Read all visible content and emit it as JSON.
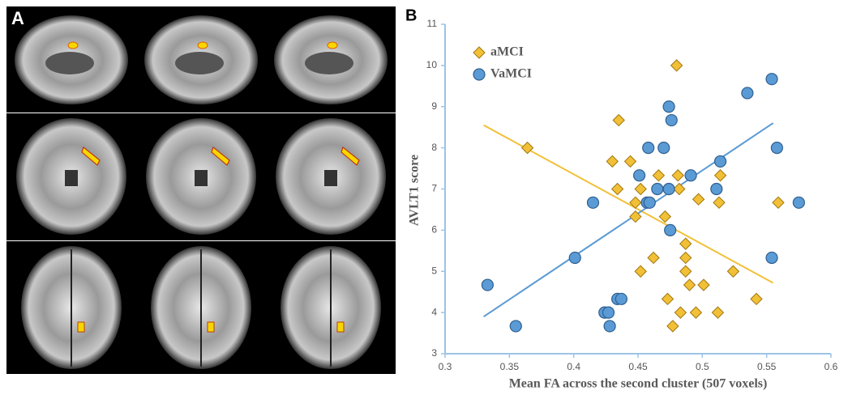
{
  "panel_a": {
    "label": "A"
  },
  "chart_data": {
    "type": "scatter",
    "panel_label": "B",
    "x_label": "Mean FA across the second cluster (507 voxels)",
    "y_label": "AVLT1 score",
    "xlim": [
      0.3,
      0.6
    ],
    "xticks": [
      0.3,
      0.35,
      0.4,
      0.45,
      0.5,
      0.55,
      0.6
    ],
    "ylim": [
      3,
      11
    ],
    "yticks": [
      3,
      4,
      5,
      6,
      7,
      8,
      9,
      10,
      11
    ],
    "legend": "upper left",
    "series": [
      {
        "name": "aMCI",
        "color": "#f2c037",
        "marker": "diamond",
        "x": [
          0.364,
          0.435,
          0.48,
          0.43,
          0.444,
          0.434,
          0.452,
          0.448,
          0.448,
          0.466,
          0.481,
          0.482,
          0.471,
          0.497,
          0.513,
          0.514,
          0.487,
          0.487,
          0.462,
          0.487,
          0.452,
          0.524,
          0.49,
          0.501,
          0.473,
          0.542,
          0.483,
          0.495,
          0.512,
          0.477,
          0.559
        ],
        "y": [
          8,
          8.67,
          10,
          7.67,
          7.67,
          7,
          7,
          6.67,
          6.33,
          7.33,
          7.33,
          7,
          6.33,
          6.75,
          6.67,
          7.33,
          5.67,
          5.33,
          5.33,
          5,
          5,
          5,
          4.67,
          4.67,
          4.33,
          4.33,
          4,
          4,
          4,
          3.67,
          6.67
        ],
        "trend": {
          "x": [
            0.33,
            0.555
          ],
          "y": [
            8.55,
            4.72
          ]
        }
      },
      {
        "name": "VaMCI",
        "color": "#5b9bd5",
        "marker": "circle",
        "x": [
          0.333,
          0.355,
          0.401,
          0.415,
          0.434,
          0.437,
          0.424,
          0.427,
          0.428,
          0.451,
          0.457,
          0.459,
          0.458,
          0.47,
          0.474,
          0.476,
          0.465,
          0.474,
          0.491,
          0.475,
          0.514,
          0.511,
          0.535,
          0.554,
          0.558,
          0.575,
          0.554
        ],
        "y": [
          4.67,
          3.67,
          5.33,
          6.67,
          4.33,
          4.33,
          4,
          4,
          3.67,
          7.33,
          6.67,
          6.67,
          8,
          8,
          9,
          8.67,
          7,
          7,
          7.33,
          6,
          7.67,
          7,
          9.33,
          9.67,
          8,
          6.67,
          5.33
        ],
        "trend": {
          "x": [
            0.33,
            0.555
          ],
          "y": [
            3.9,
            8.6
          ]
        }
      }
    ]
  }
}
